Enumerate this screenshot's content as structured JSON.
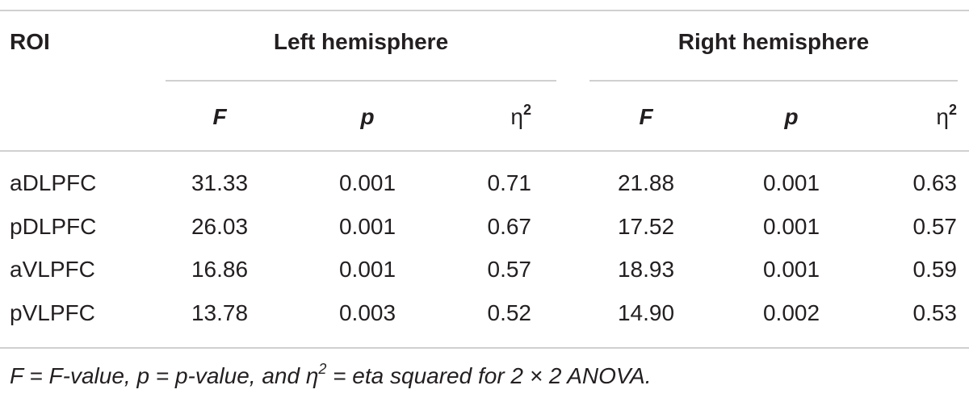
{
  "table": {
    "header": {
      "roi": "ROI",
      "groups": [
        "Left hemisphere",
        "Right hemisphere"
      ]
    },
    "columns": [
      {
        "text": "F"
      },
      {
        "text": "p"
      },
      {
        "text": "η",
        "sup": "2"
      },
      {
        "text": "F"
      },
      {
        "text": "p"
      },
      {
        "text": "η",
        "sup": "2"
      }
    ],
    "rows": [
      [
        "aDLPFC",
        "31.33",
        "0.001",
        "0.71",
        "21.88",
        "0.001",
        "0.63"
      ],
      [
        "pDLPFC",
        "26.03",
        "0.001",
        "0.67",
        "17.52",
        "0.001",
        "0.57"
      ],
      [
        "aVLPFC",
        "16.86",
        "0.001",
        "0.57",
        "18.93",
        "0.001",
        "0.59"
      ],
      [
        "pVLPFC",
        "13.78",
        "0.003",
        "0.52",
        "14.90",
        "0.002",
        "0.53"
      ]
    ],
    "footnote": [
      "F",
      " = F-value, ",
      "p",
      " = p-value, and η",
      "2",
      " = eta squared for 2 × 2 ANOVA."
    ]
  }
}
